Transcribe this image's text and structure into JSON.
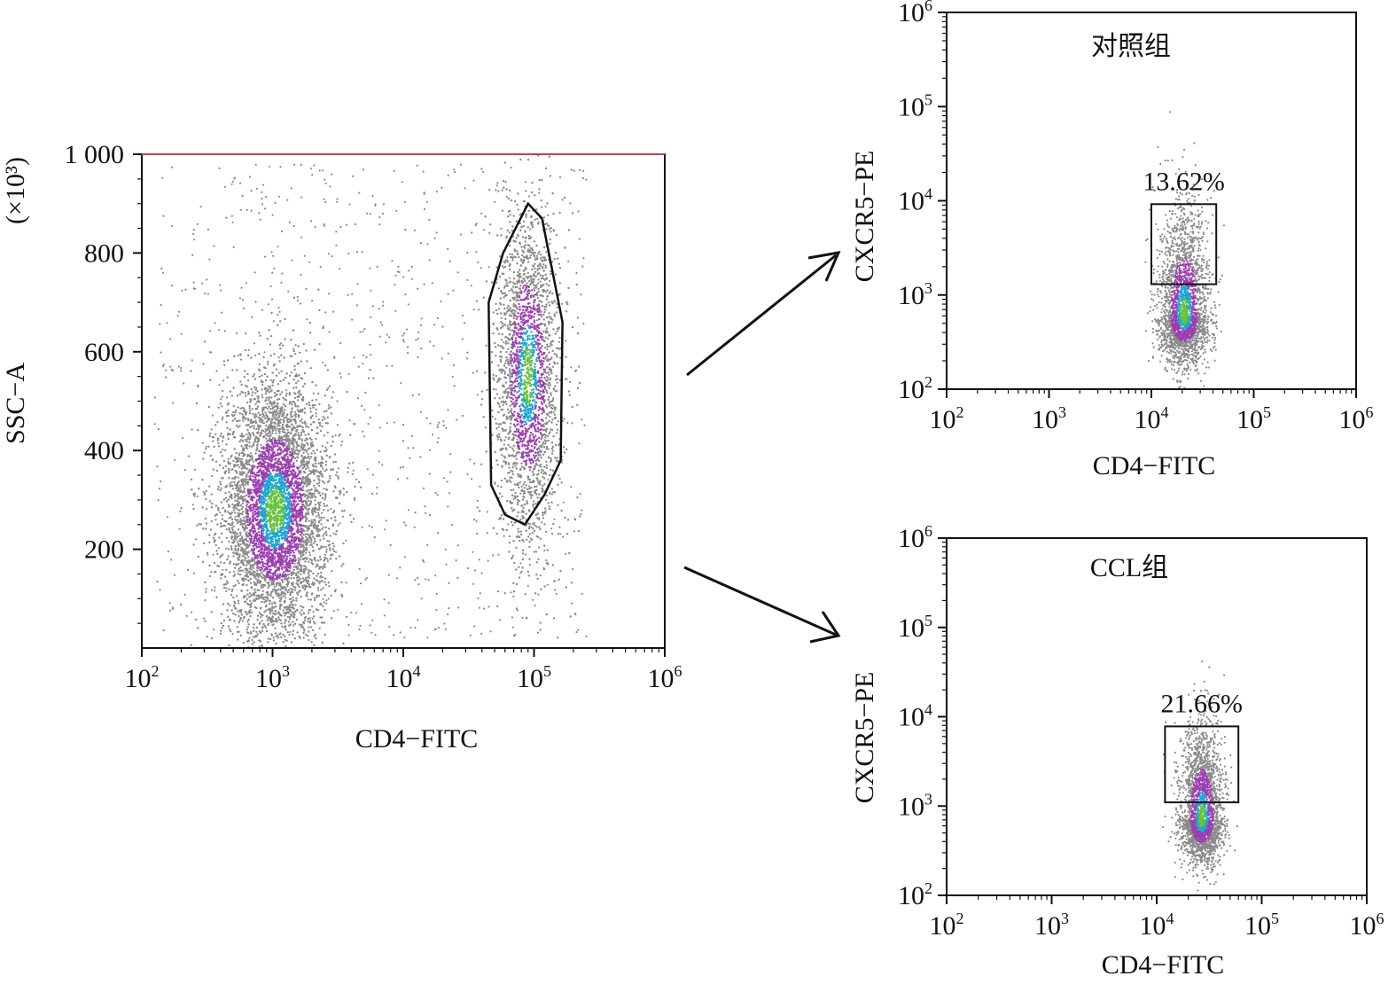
{
  "chart_data": [
    {
      "type": "scatter",
      "name_hint": "ssc-vs-cd4",
      "xlabel": "CD4−FITC",
      "ylabel": "SSC−A",
      "y_unit": "(×10³)",
      "x_scale": "log",
      "xlim": [
        100,
        1000000
      ],
      "x_ticks": [
        {
          "value": 100,
          "base": "10",
          "exp": "2"
        },
        {
          "value": 1000,
          "base": "10",
          "exp": "3"
        },
        {
          "value": 10000,
          "base": "10",
          "exp": "4"
        },
        {
          "value": 100000,
          "base": "10",
          "exp": "5"
        },
        {
          "value": 1000000,
          "base": "10",
          "exp": "6"
        }
      ],
      "y_scale": "linear",
      "ylim": [
        0,
        1000
      ],
      "y_ticks": [
        {
          "value": 200,
          "label": "200"
        },
        {
          "value": 400,
          "label": "400"
        },
        {
          "value": 600,
          "label": "600"
        },
        {
          "value": 800,
          "label": "800"
        },
        {
          "value": 1000,
          "label": "1 000"
        }
      ],
      "populations": [
        {
          "center_x": 1050,
          "center_y": 280,
          "spread_log_x": 0.2,
          "spread_y": 130,
          "density": "high"
        },
        {
          "center_x": 90000,
          "center_y": 550,
          "spread_log_x": 0.12,
          "spread_y": 170,
          "density": "medium"
        }
      ],
      "gate": {
        "shape": "polygon",
        "vertices": [
          [
            90000,
            900
          ],
          [
            115000,
            870
          ],
          [
            165000,
            660
          ],
          [
            160000,
            380
          ],
          [
            120000,
            310
          ],
          [
            85000,
            250
          ],
          [
            60000,
            270
          ],
          [
            47000,
            330
          ],
          [
            45000,
            700
          ],
          [
            58000,
            800
          ]
        ]
      }
    },
    {
      "type": "scatter",
      "name_hint": "control-group",
      "group_label": "对照组",
      "xlabel": "CD4−FITC",
      "ylabel": "CXCR5−PE",
      "x_scale": "log",
      "y_scale": "log",
      "xlim": [
        100,
        1000000
      ],
      "ylim": [
        100,
        1000000
      ],
      "x_ticks": [
        {
          "value": 100,
          "base": "10",
          "exp": "2"
        },
        {
          "value": 1000,
          "base": "10",
          "exp": "3"
        },
        {
          "value": 10000,
          "base": "10",
          "exp": "4"
        },
        {
          "value": 100000,
          "base": "10",
          "exp": "5"
        },
        {
          "value": 1000000,
          "base": "10",
          "exp": "6"
        }
      ],
      "y_ticks": [
        {
          "value": 100,
          "base": "10",
          "exp": "2"
        },
        {
          "value": 1000,
          "base": "10",
          "exp": "3"
        },
        {
          "value": 10000,
          "base": "10",
          "exp": "4"
        },
        {
          "value": 100000,
          "base": "10",
          "exp": "5"
        },
        {
          "value": 1000000,
          "base": "10",
          "exp": "6"
        }
      ],
      "population": {
        "center_x": 21000,
        "center_y": 600,
        "spread_log_x": 0.12,
        "spread_log_y": 0.45
      },
      "gate": {
        "shape": "rectangle",
        "x_min": 10000,
        "x_max": 43000,
        "y_min": 1300,
        "y_max": 9200
      },
      "gate_percent": "13.62%"
    },
    {
      "type": "scatter",
      "name_hint": "ccl-group",
      "group_label": "CCL组",
      "xlabel": "CD4−FITC",
      "ylabel": "CXCR5−PE",
      "x_scale": "log",
      "y_scale": "log",
      "xlim": [
        100,
        1000000
      ],
      "ylim": [
        100,
        1000000
      ],
      "x_ticks": [
        {
          "value": 100,
          "base": "10",
          "exp": "2"
        },
        {
          "value": 1000,
          "base": "10",
          "exp": "3"
        },
        {
          "value": 10000,
          "base": "10",
          "exp": "4"
        },
        {
          "value": 100000,
          "base": "10",
          "exp": "5"
        },
        {
          "value": 1000000,
          "base": "10",
          "exp": "6"
        }
      ],
      "y_ticks": [
        {
          "value": 100,
          "base": "10",
          "exp": "2"
        },
        {
          "value": 1000,
          "base": "10",
          "exp": "3"
        },
        {
          "value": 10000,
          "base": "10",
          "exp": "4"
        },
        {
          "value": 100000,
          "base": "10",
          "exp": "5"
        },
        {
          "value": 1000000,
          "base": "10",
          "exp": "6"
        }
      ],
      "population": {
        "center_x": 27000,
        "center_y": 700,
        "spread_log_x": 0.1,
        "spread_log_y": 0.42
      },
      "gate": {
        "shape": "rectangle",
        "x_min": 12000,
        "x_max": 60000,
        "y_min": 1100,
        "y_max": 7800
      },
      "gate_percent": "21.66%"
    }
  ],
  "colors": {
    "low_density": "#8a8a8a",
    "mid_density": "#9b3fb0",
    "high_density": "#1aa7d6",
    "peak_density": "#66c23a",
    "gate_stroke": "#111111"
  }
}
